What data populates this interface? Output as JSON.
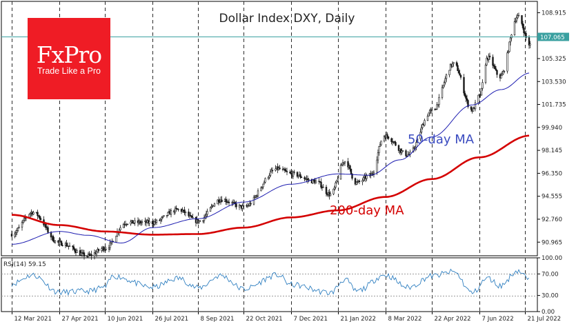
{
  "chart_data": [
    {
      "type": "candlestick",
      "title": "Dollar Index DXY, Daily",
      "ylim": [
        89.9,
        109.8
      ],
      "y_ticks": [
        "108.915",
        "107.065",
        "105.325",
        "103.530",
        "101.735",
        "99.940",
        "98.145",
        "96.350",
        "94.555",
        "92.760",
        "90.965"
      ],
      "y_tick_values": [
        108.915,
        107.065,
        105.325,
        103.53,
        101.735,
        99.94,
        98.145,
        96.35,
        94.555,
        92.76,
        90.965
      ],
      "current_price": "107.065",
      "current_price_value": 107.065,
      "x_ticks": [
        "12 Mar 2021",
        "27 Apr 2021",
        "10 Jun 2021",
        "26 Jul 2021",
        "8 Sep 2021",
        "22 Oct 2021",
        "7 Dec 2021",
        "21 Jan 2022",
        "8 Mar 2022",
        "22 Apr 2022",
        "7 Jun 2022",
        "21 Jul 2022"
      ],
      "price_path": [
        {
          "date": "12 Mar 2021",
          "value": 91.6
        },
        {
          "date": "1 Apr 2021",
          "value": 93.3
        },
        {
          "date": "27 Apr 2021",
          "value": 90.9
        },
        {
          "date": "25 May 2021",
          "value": 89.9
        },
        {
          "date": "10 Jun 2021",
          "value": 90.5
        },
        {
          "date": "1 Jul 2021",
          "value": 92.5
        },
        {
          "date": "26 Jul 2021",
          "value": 92.5
        },
        {
          "date": "20 Aug 2021",
          "value": 93.5
        },
        {
          "date": "8 Sep 2021",
          "value": 92.6
        },
        {
          "date": "30 Sep 2021",
          "value": 94.3
        },
        {
          "date": "22 Oct 2021",
          "value": 93.7
        },
        {
          "date": "24 Nov 2021",
          "value": 96.7
        },
        {
          "date": "7 Dec 2021",
          "value": 96.3
        },
        {
          "date": "31 Dec 2021",
          "value": 95.7
        },
        {
          "date": "14 Jan 2022",
          "value": 94.7
        },
        {
          "date": "28 Jan 2022",
          "value": 97.3
        },
        {
          "date": "8 Feb 2022",
          "value": 95.6
        },
        {
          "date": "22 Feb 2022",
          "value": 96.2
        },
        {
          "date": "7 Mar 2022",
          "value": 99.3
        },
        {
          "date": "30 Mar 2022",
          "value": 97.8
        },
        {
          "date": "22 Apr 2022",
          "value": 101.2
        },
        {
          "date": "13 May 2022",
          "value": 104.9
        },
        {
          "date": "31 May 2022",
          "value": 101.3
        },
        {
          "date": "7 Jun 2022",
          "value": 102.4
        },
        {
          "date": "15 Jun 2022",
          "value": 105.4
        },
        {
          "date": "27 Jun 2022",
          "value": 103.9
        },
        {
          "date": "14 Jul 2022",
          "value": 108.6
        },
        {
          "date": "26 Jul 2022",
          "value": 106.4
        }
      ],
      "series": [
        {
          "name": "50-day MA",
          "color": "#1c1cb0",
          "points": [
            {
              "date": "12 Mar 2021",
              "value": 90.8
            },
            {
              "date": "27 Apr 2021",
              "value": 91.8
            },
            {
              "date": "25 May 2021",
              "value": 91.5
            },
            {
              "date": "26 Jun 2021",
              "value": 90.9
            },
            {
              "date": "26 Jul 2021",
              "value": 92.1
            },
            {
              "date": "8 Sep 2021",
              "value": 92.8
            },
            {
              "date": "22 Oct 2021",
              "value": 94.1
            },
            {
              "date": "7 Dec 2021",
              "value": 95.5
            },
            {
              "date": "21 Jan 2022",
              "value": 96.3
            },
            {
              "date": "21 Feb 2022",
              "value": 96.2
            },
            {
              "date": "22 Mar 2022",
              "value": 97.4
            },
            {
              "date": "22 Apr 2022",
              "value": 99.2
            },
            {
              "date": "31 May 2022",
              "value": 101.7
            },
            {
              "date": "28 Jun 2022",
              "value": 102.9
            },
            {
              "date": "26 Jul 2022",
              "value": 104.2
            }
          ]
        },
        {
          "name": "200-day MA",
          "color": "#d40000",
          "points": [
            {
              "date": "12 Mar 2021",
              "value": 93.1
            },
            {
              "date": "27 Apr 2021",
              "value": 92.3
            },
            {
              "date": "10 Jun 2021",
              "value": 91.8
            },
            {
              "date": "26 Jul 2021",
              "value": 91.55
            },
            {
              "date": "8 Sep 2021",
              "value": 91.6
            },
            {
              "date": "22 Oct 2021",
              "value": 92.1
            },
            {
              "date": "7 Dec 2021",
              "value": 92.9
            },
            {
              "date": "21 Jan 2022",
              "value": 93.45
            },
            {
              "date": "8 Mar 2022",
              "value": 94.5
            },
            {
              "date": "22 Apr 2022",
              "value": 95.9
            },
            {
              "date": "7 Jun 2022",
              "value": 97.6
            },
            {
              "date": "26 Jul 2022",
              "value": 99.3
            }
          ]
        }
      ],
      "annotations": [
        "50-day MA",
        "200-day MA"
      ]
    },
    {
      "type": "line",
      "title": "RSI(14) 59.15",
      "ylim": [
        0,
        100
      ],
      "y_ticks": [
        "100.00",
        "70.00",
        "30.00",
        "0.00"
      ],
      "y_tick_values": [
        100,
        70,
        30,
        0
      ],
      "levels": [
        70,
        30
      ],
      "series": [
        {
          "name": "RSI(14)",
          "color": "#2f7fc0",
          "points": [
            {
              "date": "12 Mar 2021",
              "value": 52
            },
            {
              "date": "1 Apr 2021",
              "value": 68
            },
            {
              "date": "27 Apr 2021",
              "value": 36
            },
            {
              "date": "25 May 2021",
              "value": 38
            },
            {
              "date": "10 Jun 2021",
              "value": 45
            },
            {
              "date": "18 Jun 2021",
              "value": 66
            },
            {
              "date": "26 Jul 2021",
              "value": 45
            },
            {
              "date": "20 Aug 2021",
              "value": 62
            },
            {
              "date": "8 Sep 2021",
              "value": 44
            },
            {
              "date": "30 Sep 2021",
              "value": 67
            },
            {
              "date": "22 Oct 2021",
              "value": 42
            },
            {
              "date": "24 Nov 2021",
              "value": 68
            },
            {
              "date": "7 Dec 2021",
              "value": 50
            },
            {
              "date": "14 Jan 2022",
              "value": 35
            },
            {
              "date": "28 Jan 2022",
              "value": 60
            },
            {
              "date": "8 Feb 2022",
              "value": 38
            },
            {
              "date": "8 Mar 2022",
              "value": 68
            },
            {
              "date": "30 Mar 2022",
              "value": 45
            },
            {
              "date": "22 Apr 2022",
              "value": 66
            },
            {
              "date": "13 May 2022",
              "value": 74
            },
            {
              "date": "31 May 2022",
              "value": 35
            },
            {
              "date": "15 Jun 2022",
              "value": 62
            },
            {
              "date": "27 Jun 2022",
              "value": 48
            },
            {
              "date": "14 Jul 2022",
              "value": 76
            },
            {
              "date": "26 Jul 2022",
              "value": 59.15
            }
          ]
        }
      ]
    }
  ],
  "logo": {
    "name": "FxPro",
    "tagline": "Trade Like a Pro"
  },
  "colors": {
    "grid": "#2a2a2a",
    "bull": "#1a1a1a",
    "bear": "#1a1a1a",
    "price_line": "#3aa0a0"
  }
}
